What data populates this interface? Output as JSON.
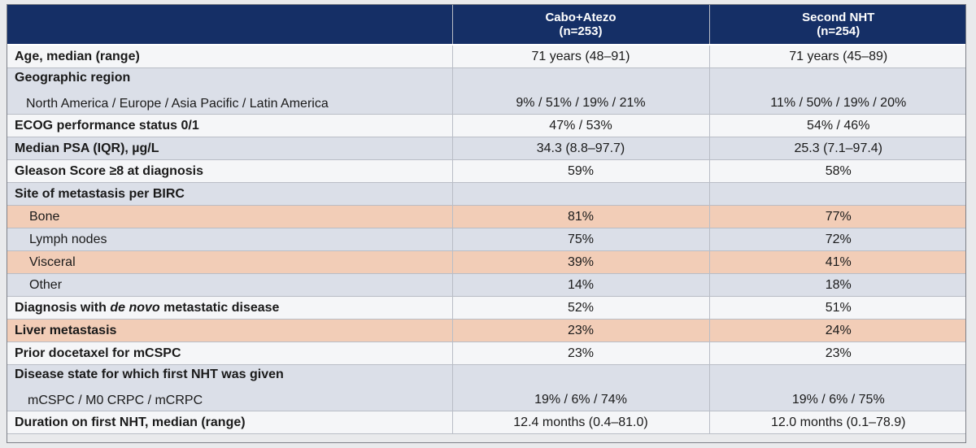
{
  "header": {
    "col1": "",
    "arm1_name": "Cabo+Atezo",
    "arm1_n": "(n=253)",
    "arm2_name": "Second NHT",
    "arm2_n": "(n=254)"
  },
  "rows": {
    "age": {
      "label": "Age, median (range)",
      "arm1": "71 years (48–91)",
      "arm2": "71 years (45–89)"
    },
    "region": {
      "label": "Geographic region",
      "sublabel": "North America / Europe / Asia Pacific / Latin America",
      "arm1": "9% / 51% / 19% / 21%",
      "arm2": "11% / 50% / 19% / 20%"
    },
    "ecog": {
      "label": "ECOG performance status 0/1",
      "arm1": "47% / 53%",
      "arm2": "54% / 46%"
    },
    "psa": {
      "label": "Median PSA (IQR), µg/L",
      "arm1": "34.3 (8.8–97.7)",
      "arm2": "25.3 (7.1–97.4)"
    },
    "gleason": {
      "label": "Gleason Score ≥8 at diagnosis",
      "arm1": "59%",
      "arm2": "58%"
    },
    "metsite": {
      "label": "Site of metastasis per BIRC"
    },
    "bone": {
      "label": "Bone",
      "arm1": "81%",
      "arm2": "77%"
    },
    "lymph": {
      "label": "Lymph nodes",
      "arm1": "75%",
      "arm2": "72%"
    },
    "visceral": {
      "label": "Visceral",
      "arm1": "39%",
      "arm2": "41%"
    },
    "other": {
      "label": "Other",
      "arm1": "14%",
      "arm2": "18%"
    },
    "denovo": {
      "label_pre": "Diagnosis with ",
      "label_it": "de novo",
      "label_post": " metastatic disease",
      "arm1": "52%",
      "arm2": "51%"
    },
    "liver": {
      "label": "Liver metastasis",
      "arm1": "23%",
      "arm2": "24%"
    },
    "docetaxel": {
      "label": "Prior docetaxel for mCSPC",
      "arm1": "23%",
      "arm2": "23%"
    },
    "disease_state": {
      "label": "Disease state for which first NHT was given",
      "sublabel": "mCSPC / M0 CRPC / mCRPC",
      "arm1": "19% / 6% / 74%",
      "arm2": "19% / 6% / 75%"
    },
    "duration": {
      "label": "Duration on first NHT, median (range)",
      "arm1": "12.4 months (0.4–81.0)",
      "arm2": "12.0 months (0.1–78.9)"
    }
  },
  "colors": {
    "header_bg": "#152f66",
    "row_light": "#f5f6f8",
    "row_blue": "#dbdfe8",
    "row_highlight": "#f2cdb7"
  }
}
